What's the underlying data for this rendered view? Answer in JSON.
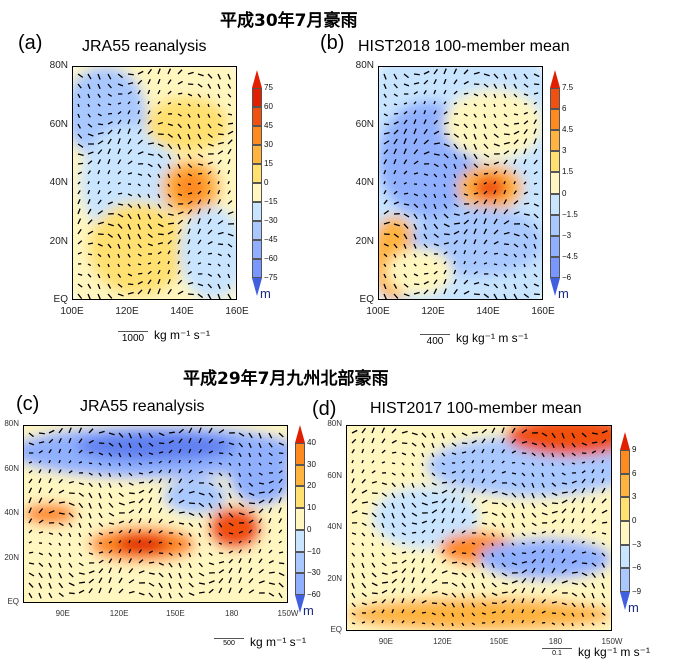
{
  "figure_title_top": "平成30年7月豪雨",
  "figure_title_bottom": "平成29年7月九州北部豪雨",
  "panels": [
    {
      "label": "(a)",
      "title": "JRA55 reanalysis",
      "lat_ticks": [
        "80N",
        "60N",
        "40N",
        "20N",
        "EQ"
      ],
      "lon_ticks": [
        "100E",
        "120E",
        "140E",
        "160E"
      ],
      "colorbar": [
        "75",
        "60",
        "45",
        "30",
        "15",
        "0",
        "−15",
        "−30",
        "−45",
        "−60",
        "−75"
      ],
      "unit": "m",
      "vector_ref": "1000",
      "vector_unit": "kg m⁻¹ s⁻¹"
    },
    {
      "label": "(b)",
      "title": "HIST2018 100-member mean",
      "lat_ticks": [
        "80N",
        "60N",
        "40N",
        "20N",
        "EQ"
      ],
      "lon_ticks": [
        "100E",
        "120E",
        "140E",
        "160E"
      ],
      "colorbar": [
        "7.5",
        "6",
        "4.5",
        "3",
        "1.5",
        "0",
        "−1.5",
        "−3",
        "−4.5",
        "−6"
      ],
      "unit": "m",
      "vector_ref": "400",
      "vector_unit": "kg kg⁻¹ m s⁻¹"
    },
    {
      "label": "(c)",
      "title": "JRA55 reanalysis",
      "lat_ticks": [
        "80N",
        "60N",
        "40N",
        "20N",
        "EQ"
      ],
      "lon_ticks": [
        "90E",
        "120E",
        "150E",
        "180",
        "150W"
      ],
      "colorbar": [
        "40",
        "30",
        "20",
        "10",
        "0",
        "−10",
        "−30",
        "−60"
      ],
      "unit": "m",
      "vector_ref": "500",
      "vector_unit": "kg m⁻¹ s⁻¹"
    },
    {
      "label": "(d)",
      "title": "HIST2017 100-member mean",
      "lat_ticks": [
        "80N",
        "60N",
        "40N",
        "20N",
        "EQ"
      ],
      "lon_ticks": [
        "90E",
        "120E",
        "150E",
        "180",
        "150W"
      ],
      "colorbar": [
        "9",
        "6",
        "3",
        "0",
        "−3",
        "−6",
        "−9"
      ],
      "unit": "m",
      "vector_ref": "0.1",
      "vector_unit": "kg kg⁻¹ m s⁻¹"
    }
  ],
  "colors": {
    "pos": [
      "#fff6c0",
      "#ffe070",
      "#ffb440",
      "#ff8a20",
      "#f05010",
      "#e02000"
    ],
    "neg": [
      "#c8e4ff",
      "#a8c8ff",
      "#90b0ff",
      "#7898ff",
      "#6080f0",
      "#4060e0"
    ]
  }
}
